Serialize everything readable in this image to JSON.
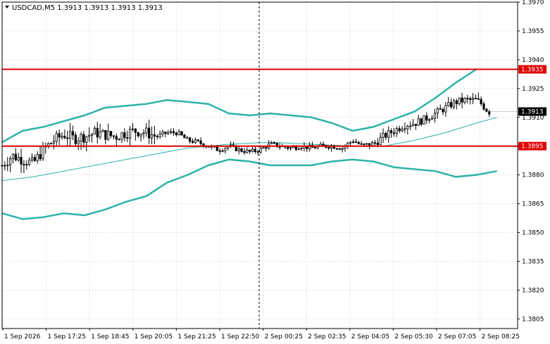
{
  "chart_data": {
    "type": "candlestick",
    "title": "USDCAD,M5  1.3913 1.3913 1.3913 1.3913",
    "symbol": "USDCAD",
    "timeframe": "M5",
    "ohlc_header": [
      1.3913,
      1.3913,
      1.3913,
      1.3913
    ],
    "ylim": [
      1.38,
      1.397
    ],
    "y_ticks": [
      "1.3970",
      "1.3955",
      "1.3940",
      "1.3925",
      "1.3910",
      "1.3895",
      "1.3880",
      "1.3865",
      "1.3850",
      "1.3835",
      "1.3820",
      "1.3805"
    ],
    "x_ticks": [
      "1 Sep 2026",
      "1 Sep 17:25",
      "1 Sep 18:45",
      "1 Sep 20:05",
      "1 Sep 21:25",
      "1 Sep 22:50",
      "2 Sep 00:25",
      "2 Sep 02:35",
      "2 Sep 04:05",
      "2 Sep 05:30",
      "2 Sep 07:05",
      "2 Sep 08:25"
    ],
    "grid": true,
    "levels": [
      {
        "price": 1.3935,
        "label": "1.3935",
        "color": "#e00000"
      },
      {
        "price": 1.3895,
        "label": "1.3895",
        "color": "#e00000"
      }
    ],
    "current_price": {
      "price": 1.3913,
      "label": "1.3913"
    },
    "colors": {
      "bands": "#2db3a9",
      "level": "#e00000",
      "candle": "#000000",
      "grid": "#c8c8c8"
    },
    "bollinger_upper": [
      [
        0,
        1.3897
      ],
      [
        0.04,
        1.3903
      ],
      [
        0.08,
        1.3905
      ],
      [
        0.12,
        1.3908
      ],
      [
        0.16,
        1.3911
      ],
      [
        0.2,
        1.3915
      ],
      [
        0.24,
        1.3916
      ],
      [
        0.28,
        1.3917
      ],
      [
        0.32,
        1.3919
      ],
      [
        0.36,
        1.3918
      ],
      [
        0.4,
        1.3917
      ],
      [
        0.44,
        1.3912
      ],
      [
        0.48,
        1.3911
      ],
      [
        0.52,
        1.3912
      ],
      [
        0.56,
        1.3911
      ],
      [
        0.6,
        1.391
      ],
      [
        0.64,
        1.3907
      ],
      [
        0.68,
        1.3903
      ],
      [
        0.72,
        1.3905
      ],
      [
        0.76,
        1.3909
      ],
      [
        0.8,
        1.3913
      ],
      [
        0.84,
        1.392
      ],
      [
        0.88,
        1.3928
      ],
      [
        0.92,
        1.3935
      ]
    ],
    "bollinger_middle": [
      [
        0,
        1.3877
      ],
      [
        0.06,
        1.3879
      ],
      [
        0.12,
        1.3882
      ],
      [
        0.2,
        1.3886
      ],
      [
        0.28,
        1.389
      ],
      [
        0.36,
        1.3894
      ],
      [
        0.44,
        1.3896
      ],
      [
        0.52,
        1.3897
      ],
      [
        0.6,
        1.3896
      ],
      [
        0.68,
        1.3895
      ],
      [
        0.74,
        1.3895
      ],
      [
        0.8,
        1.3898
      ],
      [
        0.86,
        1.3902
      ],
      [
        0.92,
        1.3907
      ],
      [
        0.96,
        1.391
      ]
    ],
    "bollinger_lower": [
      [
        0,
        1.386
      ],
      [
        0.04,
        1.3857
      ],
      [
        0.08,
        1.3858
      ],
      [
        0.12,
        1.386
      ],
      [
        0.16,
        1.3859
      ],
      [
        0.2,
        1.3862
      ],
      [
        0.24,
        1.3866
      ],
      [
        0.28,
        1.3869
      ],
      [
        0.32,
        1.3876
      ],
      [
        0.36,
        1.388
      ],
      [
        0.4,
        1.3885
      ],
      [
        0.44,
        1.3888
      ],
      [
        0.48,
        1.3887
      ],
      [
        0.52,
        1.3885
      ],
      [
        0.56,
        1.3885
      ],
      [
        0.6,
        1.3885
      ],
      [
        0.64,
        1.3887
      ],
      [
        0.68,
        1.3888
      ],
      [
        0.72,
        1.3887
      ],
      [
        0.76,
        1.3884
      ],
      [
        0.8,
        1.3883
      ],
      [
        0.84,
        1.3882
      ],
      [
        0.88,
        1.3879
      ],
      [
        0.92,
        1.388
      ],
      [
        0.96,
        1.3882
      ]
    ],
    "close_path": [
      [
        0,
        1.3885
      ],
      [
        0.02,
        1.389
      ],
      [
        0.04,
        1.3888
      ],
      [
        0.06,
        1.3886
      ],
      [
        0.08,
        1.3893
      ],
      [
        0.1,
        1.3898
      ],
      [
        0.12,
        1.3901
      ],
      [
        0.14,
        1.3899
      ],
      [
        0.16,
        1.39
      ],
      [
        0.18,
        1.3902
      ],
      [
        0.2,
        1.3901
      ],
      [
        0.22,
        1.39
      ],
      [
        0.24,
        1.3902
      ],
      [
        0.26,
        1.3903
      ],
      [
        0.28,
        1.3902
      ],
      [
        0.3,
        1.39
      ],
      [
        0.32,
        1.3902
      ],
      [
        0.34,
        1.3902
      ],
      [
        0.36,
        1.3898
      ],
      [
        0.38,
        1.3897
      ],
      [
        0.4,
        1.3895
      ],
      [
        0.42,
        1.3893
      ],
      [
        0.44,
        1.3895
      ],
      [
        0.46,
        1.3893
      ],
      [
        0.48,
        1.3892
      ],
      [
        0.5,
        1.3893
      ],
      [
        0.52,
        1.3896
      ],
      [
        0.54,
        1.3895
      ],
      [
        0.56,
        1.3894
      ],
      [
        0.58,
        1.3895
      ],
      [
        0.6,
        1.3894
      ],
      [
        0.62,
        1.3895
      ],
      [
        0.64,
        1.3895
      ],
      [
        0.66,
        1.3894
      ],
      [
        0.68,
        1.3898
      ],
      [
        0.7,
        1.3895
      ],
      [
        0.72,
        1.3896
      ],
      [
        0.74,
        1.39
      ],
      [
        0.76,
        1.3903
      ],
      [
        0.78,
        1.3906
      ],
      [
        0.8,
        1.3907
      ],
      [
        0.82,
        1.3909
      ],
      [
        0.84,
        1.3912
      ],
      [
        0.86,
        1.3915
      ],
      [
        0.88,
        1.3918
      ],
      [
        0.9,
        1.3919
      ],
      [
        0.92,
        1.3919
      ],
      [
        0.93,
        1.3917
      ],
      [
        0.94,
        1.3914
      ],
      [
        0.945,
        1.3913
      ]
    ]
  }
}
